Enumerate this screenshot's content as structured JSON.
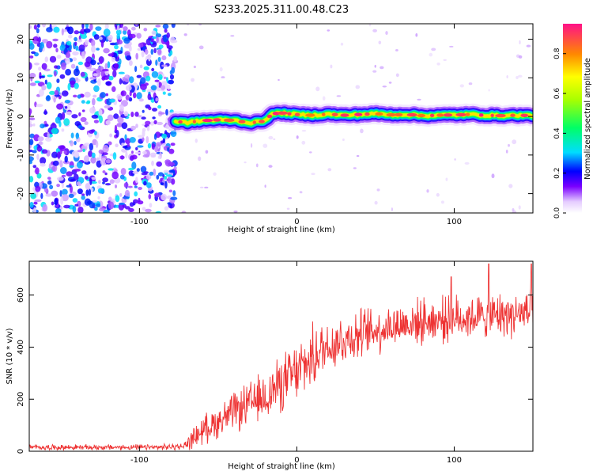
{
  "figure": {
    "title": "S233.2025.311.00.48.C23"
  },
  "chart_data": [
    {
      "id": "spectrogram",
      "type": "heatmap",
      "xlabel": "Height of straight line (km)",
      "ylabel": "Frequency (Hz)",
      "xlim": [
        -170,
        150
      ],
      "ylim": [
        -25,
        24
      ],
      "xticks": [
        -100,
        0,
        100
      ],
      "yticks": [
        -20,
        -10,
        0,
        10,
        20
      ],
      "noise_region": {
        "x_range": [
          -170,
          -77
        ],
        "amplitude_range": [
          0.05,
          0.35
        ]
      },
      "signal_band": {
        "x_start": -77,
        "x": [
          -77,
          -70,
          -60,
          -50,
          -40,
          -30,
          -22,
          -18,
          -15,
          -10,
          0,
          10,
          20,
          30,
          40,
          50,
          60,
          70,
          80,
          90,
          100,
          110,
          120,
          130,
          140,
          150
        ],
        "frequency": [
          -1.3,
          -1.6,
          -1.1,
          -0.9,
          -1.0,
          -1.7,
          -1.3,
          -0.2,
          0.7,
          0.9,
          0.5,
          0.3,
          0.6,
          0.3,
          0.5,
          0.7,
          0.4,
          0.5,
          0.2,
          0.3,
          0.4,
          0.5,
          0.3,
          0.2,
          0.3,
          0.2
        ],
        "peak_amplitude": 1.0
      },
      "colorbar": {
        "label": "Normalized spectral amplitude",
        "range": [
          0,
          0.95
        ],
        "ticks": [
          "0.0",
          "0.2",
          "0.4",
          "0.6",
          "0.8"
        ],
        "tick_values": [
          0,
          0.2,
          0.4,
          0.6,
          0.8
        ]
      }
    },
    {
      "id": "snr",
      "type": "line",
      "xlabel": "Height of straight line (km)",
      "ylabel": "SNR (10 * v/v)",
      "xlim": [
        -170,
        150
      ],
      "ylim": [
        0,
        730
      ],
      "xticks": [
        -100,
        0,
        100
      ],
      "yticks": [
        0,
        200,
        400,
        600
      ],
      "color": "#ee3333",
      "envelope": {
        "x": [
          -170,
          -90,
          -72,
          -68,
          -60,
          -40,
          -20,
          -10,
          0,
          10,
          20,
          40,
          60,
          80,
          100,
          120,
          150
        ],
        "mean": [
          15,
          15,
          18,
          40,
          80,
          150,
          210,
          260,
          300,
          360,
          410,
          450,
          480,
          500,
          510,
          520,
          530
        ],
        "noise": [
          10,
          10,
          12,
          30,
          50,
          70,
          90,
          100,
          110,
          110,
          100,
          90,
          80,
          80,
          80,
          80,
          80
        ],
        "peaks": [
          {
            "x": 98,
            "y": 670
          },
          {
            "x": 122,
            "y": 720
          },
          {
            "x": 149,
            "y": 720
          }
        ]
      }
    }
  ]
}
